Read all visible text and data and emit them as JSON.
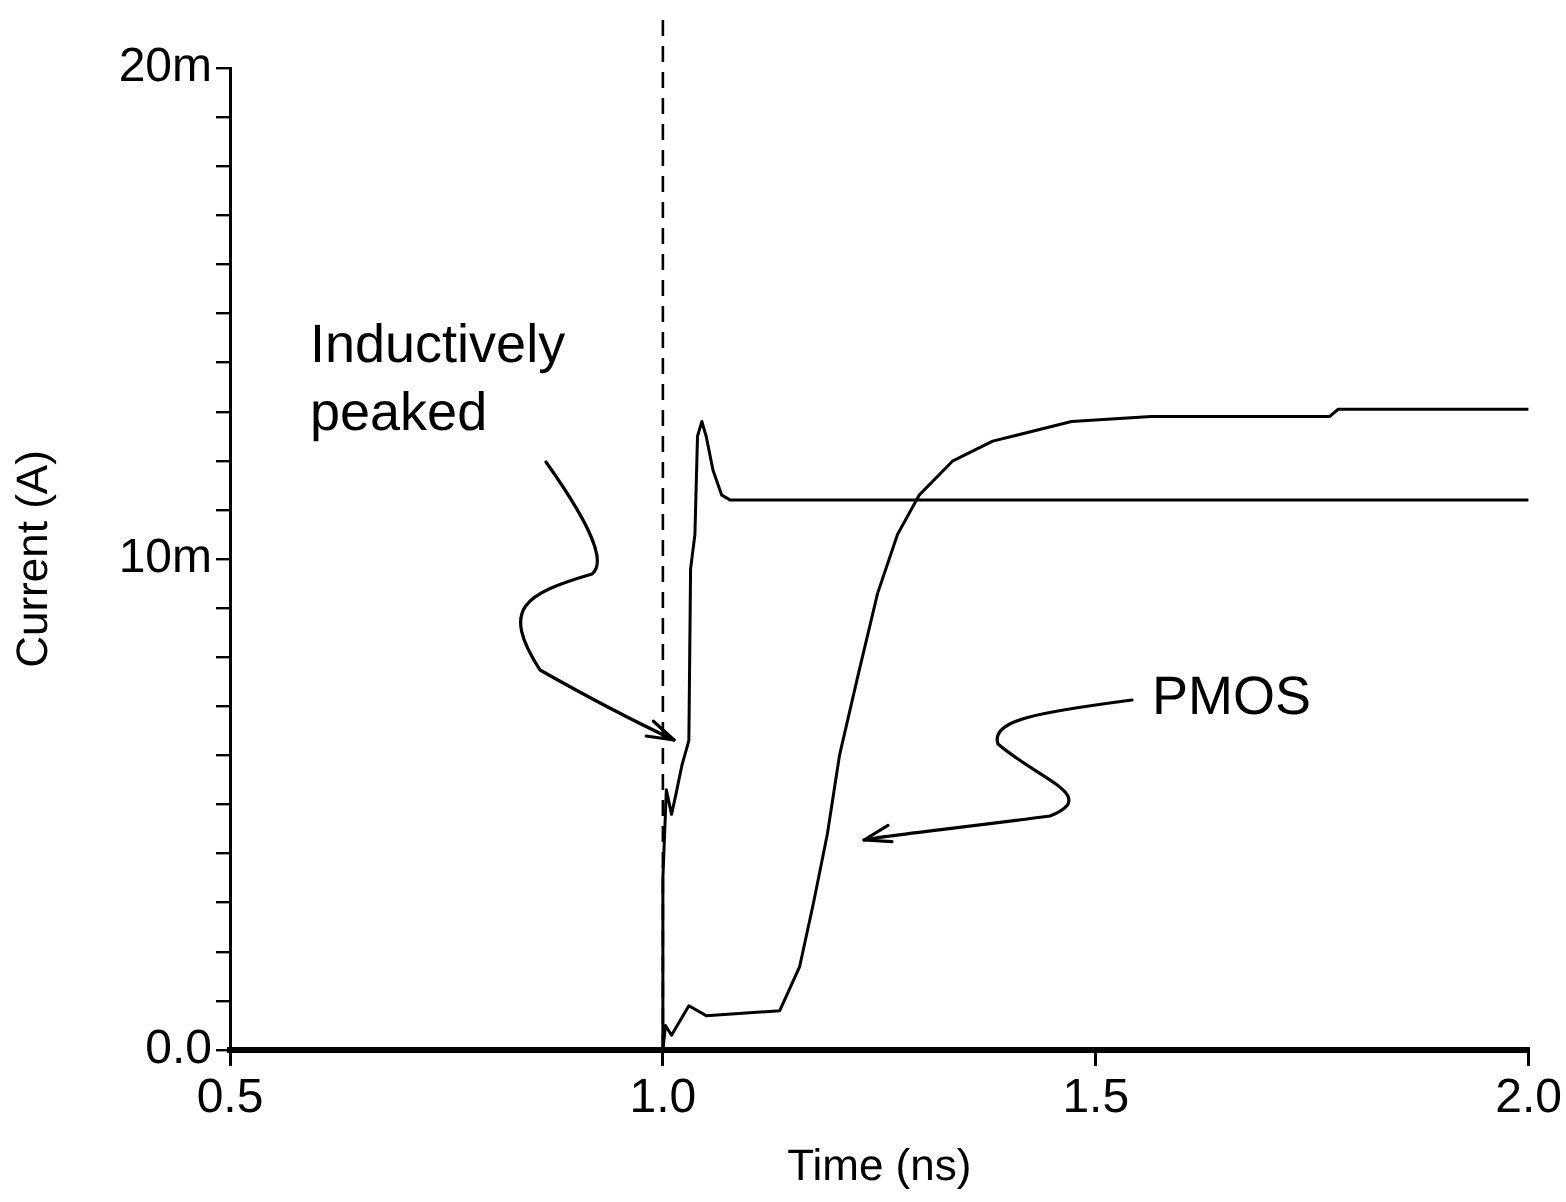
{
  "chart_data": {
    "type": "line",
    "xlabel": "Time (ns)",
    "ylabel": "Current (A)",
    "xlim": [
      0.5,
      2.0
    ],
    "xticks": [
      {
        "value": 0.5,
        "label": "0.5"
      },
      {
        "value": 1.0,
        "label": "1.0"
      },
      {
        "value": 1.5,
        "label": "1.5"
      },
      {
        "value": 2.0,
        "label": "2.0"
      }
    ],
    "ylim": [
      0,
      20
    ],
    "yticks": [
      {
        "value": 0,
        "label": "0.0"
      },
      {
        "value": 1,
        "label": null
      },
      {
        "value": 2,
        "label": null
      },
      {
        "value": 3,
        "label": null
      },
      {
        "value": 4,
        "label": null
      },
      {
        "value": 5,
        "label": null
      },
      {
        "value": 6,
        "label": null
      },
      {
        "value": 7,
        "label": null
      },
      {
        "value": 8,
        "label": null
      },
      {
        "value": 9,
        "label": null
      },
      {
        "value": 10,
        "label": "10m"
      },
      {
        "value": 11,
        "label": null
      },
      {
        "value": 12,
        "label": null
      },
      {
        "value": 13,
        "label": null
      },
      {
        "value": 14,
        "label": null
      },
      {
        "value": 15,
        "label": null
      },
      {
        "value": 16,
        "label": null
      },
      {
        "value": 17,
        "label": null
      },
      {
        "value": 18,
        "label": null
      },
      {
        "value": 19,
        "label": null
      },
      {
        "value": 20,
        "label": "20m"
      }
    ],
    "grid": false,
    "legend": false,
    "marker": "none",
    "line_style": "solid",
    "series": [
      {
        "color": "#000000",
        "x": [
          1.0,
          1.0,
          1.004,
          1.01,
          1.015,
          1.022,
          1.03,
          1.032,
          1.037,
          1.04,
          1.045,
          1.05,
          1.058,
          1.068,
          1.078,
          2.0
        ],
        "values": [
          0,
          3.5,
          5.3,
          4.8,
          5.2,
          5.8,
          6.3,
          9.8,
          10.5,
          12.5,
          12.8,
          12.5,
          11.8,
          11.3,
          11.2,
          11.2
        ]
      },
      {
        "color": "#000000",
        "x": [
          1.0,
          1.003,
          1.01,
          1.02,
          1.03,
          1.05,
          1.135,
          1.158,
          1.174,
          1.19,
          1.204,
          1.225,
          1.248,
          1.271,
          1.296,
          1.335,
          1.381,
          1.472,
          1.564,
          1.77,
          1.78,
          2.0
        ],
        "values": [
          0,
          0.5,
          0.3,
          0.6,
          0.9,
          0.7,
          0.8,
          1.7,
          3.0,
          4.4,
          6.0,
          7.6,
          9.3,
          10.5,
          11.3,
          12.0,
          12.4,
          12.8,
          12.9,
          12.9,
          13.05,
          13.05
        ]
      }
    ],
    "ref_lines": [
      {
        "axis": "x",
        "value": 1.0,
        "line_style": "dashed",
        "color": "#000000"
      }
    ],
    "annotations": [
      "Inductively peaked",
      "PMOS"
    ]
  }
}
